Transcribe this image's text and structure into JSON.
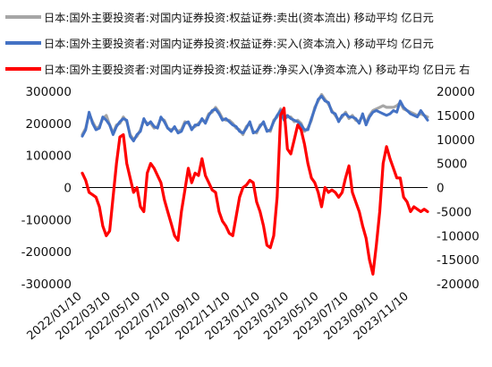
{
  "chart_data": {
    "type": "line",
    "title": "",
    "x": [
      "2022/01/10",
      "2022/01/17",
      "2022/01/24",
      "2022/01/31",
      "2022/02/07",
      "2022/02/14",
      "2022/02/21",
      "2022/02/28",
      "2022/03/07",
      "2022/03/14",
      "2022/03/21",
      "2022/03/28",
      "2022/04/04",
      "2022/04/11",
      "2022/04/18",
      "2022/04/25",
      "2022/05/02",
      "2022/05/09",
      "2022/05/16",
      "2022/05/23",
      "2022/05/30",
      "2022/06/06",
      "2022/06/13",
      "2022/06/20",
      "2022/06/27",
      "2022/07/04",
      "2022/07/11",
      "2022/07/18",
      "2022/07/25",
      "2022/08/01",
      "2022/08/08",
      "2022/08/15",
      "2022/08/22",
      "2022/08/29",
      "2022/09/05",
      "2022/09/12",
      "2022/09/19",
      "2022/09/26",
      "2022/10/03",
      "2022/10/10",
      "2022/10/17",
      "2022/10/24",
      "2022/10/31",
      "2022/11/07",
      "2022/11/14",
      "2022/11/21",
      "2022/11/28",
      "2022/12/05",
      "2022/12/12",
      "2022/12/19",
      "2022/12/26",
      "2023/01/02",
      "2023/01/09",
      "2023/01/16",
      "2023/01/23",
      "2023/01/30",
      "2023/02/06",
      "2023/02/13",
      "2023/02/20",
      "2023/02/27",
      "2023/03/06",
      "2023/03/13",
      "2023/03/20",
      "2023/03/27",
      "2023/04/03",
      "2023/04/10",
      "2023/04/17",
      "2023/04/24",
      "2023/05/01",
      "2023/05/08",
      "2023/05/15",
      "2023/05/22",
      "2023/05/29",
      "2023/06/05",
      "2023/06/12",
      "2023/06/19",
      "2023/06/26",
      "2023/07/03",
      "2023/07/10",
      "2023/07/17",
      "2023/07/24",
      "2023/07/31",
      "2023/08/07",
      "2023/08/14",
      "2023/08/21",
      "2023/08/28",
      "2023/09/04",
      "2023/09/11",
      "2023/09/18",
      "2023/09/25",
      "2023/10/02",
      "2023/10/09",
      "2023/10/16",
      "2023/10/23",
      "2023/10/30",
      "2023/11/06",
      "2023/11/13",
      "2023/11/20",
      "2023/11/27",
      "2023/12/04",
      "2023/12/11",
      "2023/12/18"
    ],
    "x_tick_labels": [
      "2022/01/10",
      "2022/03/10",
      "2022/05/10",
      "2022/07/10",
      "2022/09/10",
      "2022/11/10",
      "2023/01/10",
      "2023/03/10",
      "2023/05/10",
      "2023/07/10",
      "2023/09/10",
      "2023/11/10"
    ],
    "y_left": {
      "min": -300000,
      "max": 300000,
      "step": 100000,
      "tick_labels": [
        "300000",
        "200000",
        "100000",
        "0",
        "-100000",
        "-200000",
        "-300000"
      ]
    },
    "y_right": {
      "min": -20000,
      "max": 20000,
      "step": 5000,
      "tick_labels": [
        "20000",
        "15000",
        "10000",
        "5000",
        "0",
        "-5000",
        "-10000",
        "-15000",
        "-20000"
      ]
    },
    "grid": false,
    "legend_position": "top-left",
    "series": [
      {
        "name": "日本:国外主要投资者:对国内证券投资:权益证券:卖出(资本流出) 移动平均 亿日元",
        "axis": "left",
        "color": "#a6a6a6",
        "values": [
          165000,
          185000,
          230000,
          205000,
          185000,
          190000,
          215000,
          225000,
          195000,
          170000,
          195000,
          200000,
          220000,
          205000,
          165000,
          150000,
          160000,
          180000,
          210000,
          200000,
          200000,
          185000,
          190000,
          215000,
          210000,
          185000,
          180000,
          185000,
          175000,
          180000,
          205000,
          200000,
          185000,
          190000,
          200000,
          210000,
          205000,
          230000,
          235000,
          250000,
          235000,
          215000,
          210000,
          210000,
          200000,
          185000,
          180000,
          165000,
          190000,
          200000,
          175000,
          170000,
          195000,
          200000,
          180000,
          175000,
          210000,
          220000,
          245000,
          215000,
          220000,
          220000,
          205000,
          210000,
          200000,
          175000,
          185000,
          210000,
          250000,
          270000,
          290000,
          275000,
          260000,
          240000,
          225000,
          210000,
          220000,
          235000,
          215000,
          225000,
          210000,
          205000,
          225000,
          200000,
          225000,
          240000,
          245000,
          250000,
          255000,
          250000,
          250000,
          250000,
          255000,
          265000,
          245000,
          240000,
          235000,
          230000,
          225000,
          230000,
          225000,
          220000
        ]
      },
      {
        "name": "日本:国外主要投资者:对国内证券投资:权益证券:买入(资本流入) 移动平均 亿日元",
        "axis": "left",
        "color": "#4472c4",
        "values": [
          160000,
          180000,
          235000,
          200000,
          180000,
          185000,
          220000,
          210000,
          195000,
          165000,
          190000,
          205000,
          215000,
          210000,
          160000,
          145000,
          165000,
          175000,
          215000,
          195000,
          205000,
          190000,
          185000,
          220000,
          205000,
          185000,
          175000,
          190000,
          170000,
          175000,
          200000,
          205000,
          180000,
          195000,
          195000,
          215000,
          200000,
          225000,
          240000,
          245000,
          230000,
          210000,
          215000,
          205000,
          195000,
          190000,
          175000,
          170000,
          185000,
          205000,
          170000,
          175000,
          190000,
          205000,
          175000,
          180000,
          205000,
          225000,
          240000,
          210000,
          225000,
          215000,
          210000,
          205000,
          195000,
          180000,
          180000,
          215000,
          245000,
          275000,
          285000,
          270000,
          265000,
          235000,
          230000,
          205000,
          225000,
          230000,
          220000,
          220000,
          215000,
          200000,
          230000,
          195000,
          220000,
          235000,
          240000,
          235000,
          230000,
          225000,
          230000,
          240000,
          235000,
          270000,
          250000,
          240000,
          230000,
          225000,
          220000,
          240000,
          225000,
          210000
        ]
      },
      {
        "name": "日本:国外主要投资者:对国内证券投资:权益证券:净买入(净资本流入) 移动平均 亿日元 右",
        "axis": "right",
        "color": "#ff0000",
        "values": [
          3000,
          1500,
          -1000,
          -1500,
          -2000,
          -4000,
          -8000,
          -10000,
          -9000,
          -2000,
          5000,
          10500,
          11000,
          5000,
          2000,
          -1000,
          0,
          -4000,
          -5000,
          3000,
          5000,
          4000,
          2500,
          1000,
          -2500,
          -5000,
          -7500,
          -10000,
          -11000,
          -5000,
          -500,
          4000,
          1000,
          3000,
          2500,
          6000,
          2500,
          1000,
          -500,
          -1000,
          -5000,
          -7000,
          -8000,
          -9500,
          -10000,
          -6000,
          -2000,
          0,
          500,
          1500,
          1000,
          -3000,
          -5000,
          -8000,
          -12000,
          -12500,
          -10000,
          -2000,
          15000,
          16500,
          8000,
          7000,
          10000,
          13000,
          12000,
          9000,
          5000,
          2000,
          1000,
          -1000,
          -4000,
          0,
          -1000,
          -500,
          -1000,
          -2000,
          -1000,
          2000,
          4500,
          -1000,
          -3000,
          -5000,
          -8000,
          -10500,
          -15000,
          -18000,
          -12000,
          -5000,
          5000,
          8500,
          6000,
          4000,
          2000,
          2000,
          -2000,
          -3000,
          -5000,
          -4000,
          -4500,
          -5000,
          -4500,
          -5000
        ]
      }
    ]
  }
}
